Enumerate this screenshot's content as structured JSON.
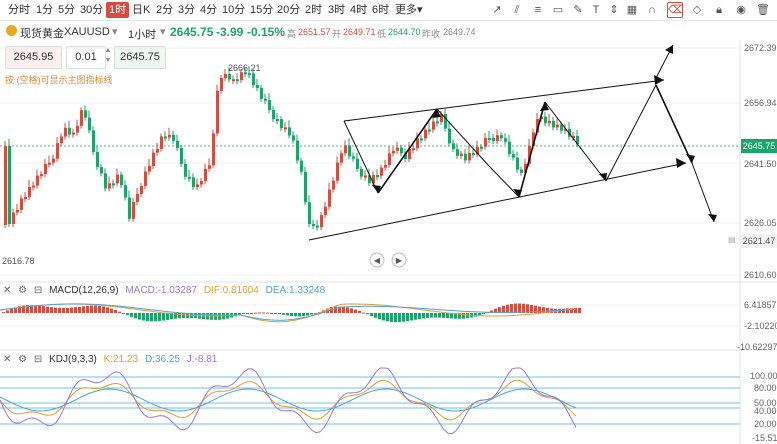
{
  "timeframes": [
    "分时",
    "1分",
    "5分",
    "30分",
    "1时",
    "日K",
    "2分",
    "3分",
    "4分",
    "10分",
    "15分",
    "20分",
    "2时",
    "3时",
    "4时",
    "6时",
    "更多"
  ],
  "active_timeframe": "1时",
  "symbol": {
    "name": "现货黄金",
    "code": "XAUUSD",
    "interval": "1小时",
    "price": "2645.75",
    "change": "-3.99",
    "change_pct": "-0.15%"
  },
  "ohlc": {
    "high_label": "高",
    "high": "2651.57",
    "open_label": "开",
    "open": "2649.71",
    "low_label": "低",
    "low": "2644.70",
    "prev_label": "昨收",
    "prev": "2649.74"
  },
  "order": {
    "sell_price": "2645.95",
    "lot": "0.01",
    "buy_price": "2645.75"
  },
  "hint": "按 (空格)可显示主图指标线",
  "price_axis": [
    "2672.39",
    "2656.94",
    "2641.50",
    "2626.05",
    "2610.60"
  ],
  "current_price_tag": "2645.75",
  "low_price_tag": "2621.47",
  "annotations": {
    "peak": "2666.21",
    "trough": "2616.78"
  },
  "macd": {
    "title": "MACD(12,26,9)",
    "macd": "MACD:-1.03287",
    "dif": "DIF:0.81604",
    "dea": "DEA:1.33248",
    "axis": [
      "6.41857",
      "-2.10220",
      "-10.62297"
    ]
  },
  "kdj": {
    "title": "KDJ(9,3,3)",
    "k": "K:21.23",
    "d": "D:36.25",
    "j": "J:-8.81",
    "axis": [
      "100.00",
      "80.00",
      "50.00",
      "40.00",
      "20.00",
      "-15.51"
    ]
  },
  "colors": {
    "up": "#d94b3d",
    "down": "#1aa56b",
    "k": "#e0a030",
    "d": "#4aa5dc",
    "j": "#9a7bd6"
  }
}
